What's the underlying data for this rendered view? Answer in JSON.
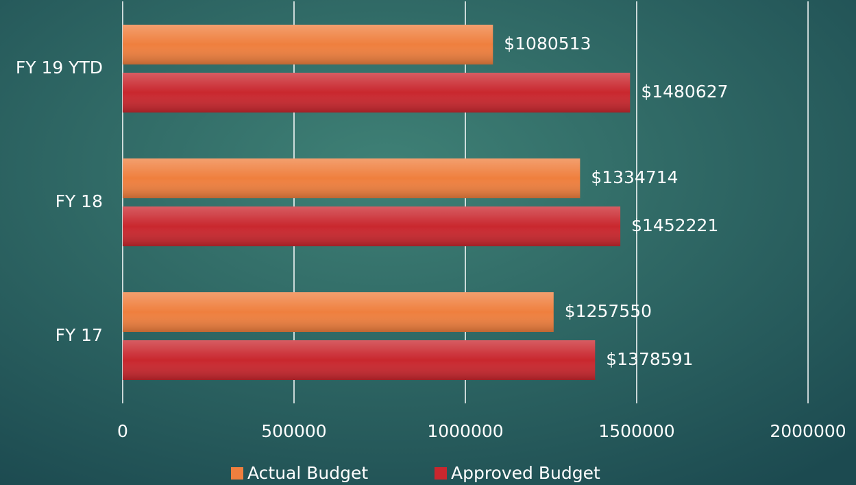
{
  "chart_data": {
    "type": "bar",
    "orientation": "horizontal",
    "categories": [
      "FY 17",
      "FY 18",
      "FY 19 YTD"
    ],
    "series": [
      {
        "name": "Actual Budget",
        "color": "#ef7f3e",
        "values": [
          1257550,
          1334714,
          1080513
        ],
        "value_labels": [
          "$1257550",
          "$1334714",
          "$1080513"
        ]
      },
      {
        "name": "Approved Budget",
        "color": "#c9272e",
        "values": [
          1378591,
          1452221,
          1480627
        ],
        "value_labels": [
          "$1378591",
          "$1452221",
          "$1480627"
        ]
      }
    ],
    "xlim": [
      0,
      2000000
    ],
    "xticks": [
      0,
      500000,
      1000000,
      1500000,
      2000000
    ],
    "grid": true,
    "legend": "bottom"
  }
}
